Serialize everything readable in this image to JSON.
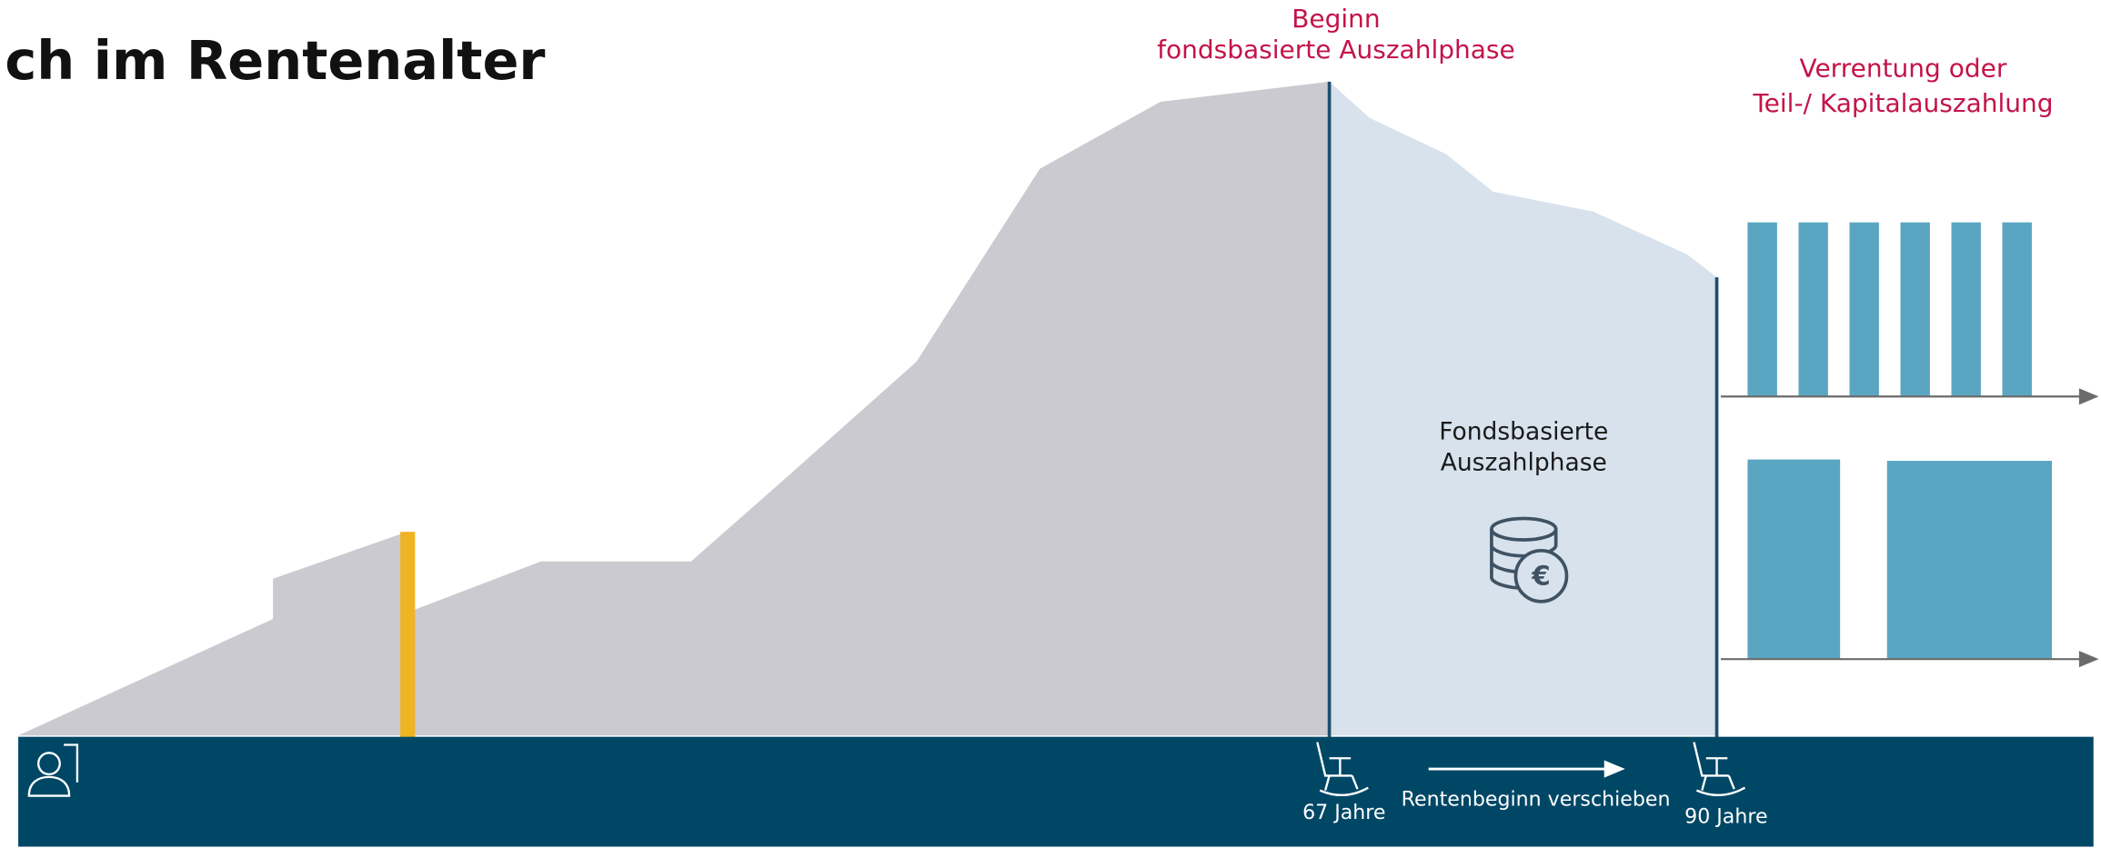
{
  "header": {
    "title": "ch im Rentenalter"
  },
  "labels": {
    "start_line1": "Beginn",
    "start_line2": "fondsbasierte Auszahlphase",
    "end_line1": "Verrentung oder",
    "end_line2": "Teil-/ Kapitalauszahlung",
    "phase_line1": "Fondsbasierte",
    "phase_line2": "Auszahlphase",
    "age_start": "67 Jahre",
    "shift": "Rentenbeginn verschieben",
    "age_end": "90 Jahre"
  }
}
